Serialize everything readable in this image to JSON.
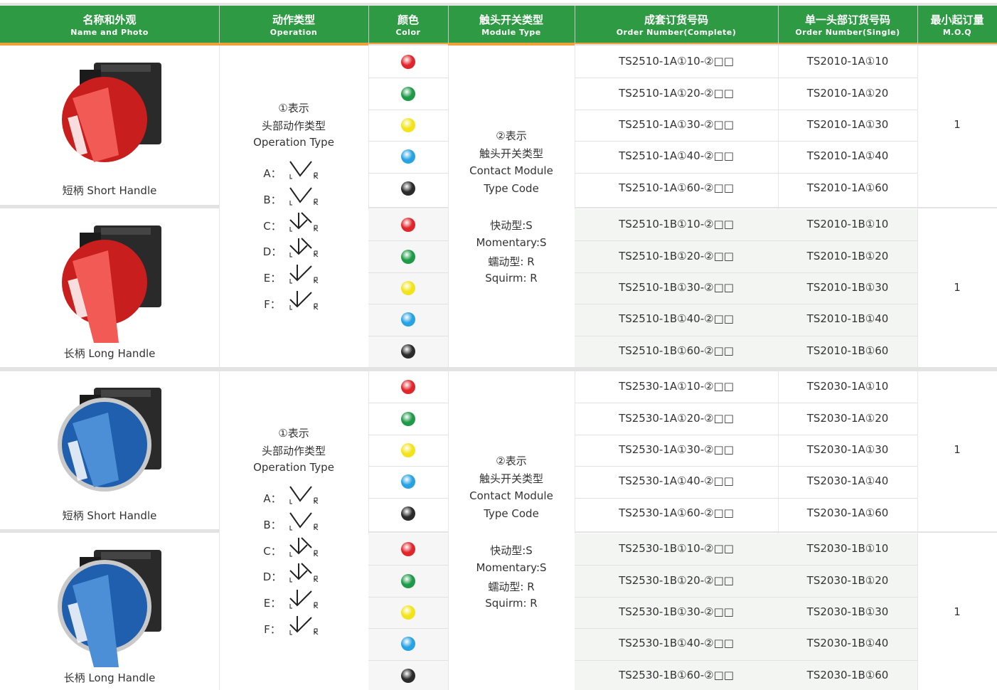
{
  "header": {
    "columns": [
      {
        "zh": "名称和外观",
        "en": "Name and Photo"
      },
      {
        "zh": "动作类型",
        "en": "Operation"
      },
      {
        "zh": "颜色",
        "en": "Color"
      },
      {
        "zh": "触头开关类型",
        "en": "Module Type"
      },
      {
        "zh": "成套订货号码",
        "en": "Order Number(Complete)"
      },
      {
        "zh": "单一头部订货号码",
        "en": "Order Number(Single)"
      },
      {
        "zh": "最小起订量",
        "en": "M.O.Q"
      }
    ]
  },
  "sections": [
    {
      "operation": {
        "lines": [
          "①表示",
          "头部动作类型",
          "Operation Type"
        ],
        "options": [
          "A：",
          "B：",
          "C：",
          "D：",
          "E：",
          "F："
        ]
      },
      "module": {
        "lines": [
          "②表示",
          "触头开关类型",
          "Contact Module",
          "Type Code",
          "快动型:S",
          "Momentary:S",
          "蠕动型: R",
          "Squirm: R"
        ]
      },
      "groups": [
        {
          "photo_label": "短柄 Short Handle",
          "moq": 1,
          "complete": [
            "TS2510-1A①10-②□□",
            "TS2510-1A①20-②□□",
            "TS2510-1A①30-②□□",
            "TS2510-1A①40-②□□",
            "TS2510-1A①60-②□□"
          ],
          "single": [
            "TS2010-1A①10",
            "TS2010-1A①20",
            "TS2010-1A①30",
            "TS2010-1A①40",
            "TS2010-1A①60"
          ]
        },
        {
          "photo_label": "长柄 Long Handle",
          "moq": 1,
          "complete": [
            "TS2510-1B①10-②□□",
            "TS2510-1B①20-②□□",
            "TS2510-1B①30-②□□",
            "TS2510-1B①40-②□□",
            "TS2510-1B①60-②□□"
          ],
          "single": [
            "TS2010-1B①10",
            "TS2010-1B①20",
            "TS2010-1B①30",
            "TS2010-1B①40",
            "TS2010-1B①60"
          ]
        }
      ]
    },
    {
      "operation": {
        "lines": [
          "①表示",
          "头部动作类型",
          "Operation Type"
        ],
        "options": [
          "A：",
          "B：",
          "C：",
          "D：",
          "E：",
          "F："
        ]
      },
      "module": {
        "lines": [
          "②表示",
          "触头开关类型",
          "Contact Module",
          "Type Code",
          "快动型:S",
          "Momentary:S",
          "蠕动型: R",
          "Squirm: R"
        ]
      },
      "groups": [
        {
          "photo_label": "短柄 Short Handle",
          "moq": 1,
          "complete": [
            "TS2530-1A①10-②□□",
            "TS2530-1A①20-②□□",
            "TS2530-1A①30-②□□",
            "TS2530-1A①40-②□□",
            "TS2530-1A①60-②□□"
          ],
          "single": [
            "TS2030-1A①10",
            "TS2030-1A①20",
            "TS2030-1A①30",
            "TS2030-1A①40",
            "TS2030-1A①60"
          ]
        },
        {
          "photo_label": "长柄 Long Handle",
          "moq": 1,
          "complete": [
            "TS2530-1B①10-②□□",
            "TS2530-1B①20-②□□",
            "TS2530-1B①30-②□□",
            "TS2530-1B①40-②□□",
            "TS2530-1B①60-②□□"
          ],
          "single": [
            "TS2030-1B①10",
            "TS2030-1B①20",
            "TS2030-1B①30",
            "TS2030-1B①40",
            "TS2030-1B①60"
          ]
        }
      ]
    }
  ]
}
